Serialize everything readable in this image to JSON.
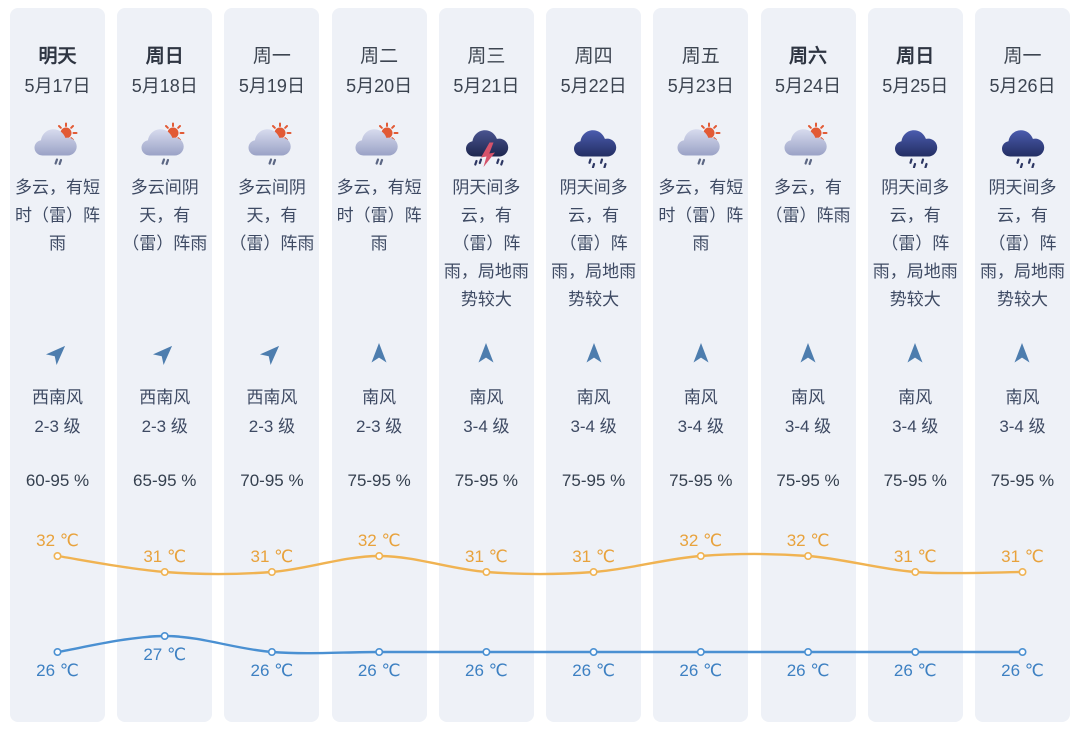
{
  "colors": {
    "column_bg": "#eef1f7",
    "day_text": "#3d4551",
    "day_bold_text": "#2e3542",
    "date_text": "#3b4350",
    "body_text": "#3e4a63",
    "humidity_text": "#35404f",
    "wind_arrow": "#4d7dae",
    "high_line": "#f0b352",
    "high_label": "#e8a23c",
    "low_line": "#4a90d2",
    "low_label": "#3d80c2"
  },
  "days": [
    {
      "day": "明天",
      "date": "5月17日",
      "bold": true,
      "icon": "cloud-sun-rain",
      "desc": "多云，有短时（雷）阵雨",
      "wind_icon": "arrow-ne",
      "wind_dir": "西南风",
      "wind_level": "2-3 级",
      "humidity": "60-95 %"
    },
    {
      "day": "周日",
      "date": "5月18日",
      "bold": true,
      "icon": "cloud-sun-rain",
      "desc": "多云间阴天，有（雷）阵雨",
      "wind_icon": "arrow-ne",
      "wind_dir": "西南风",
      "wind_level": "2-3 级",
      "humidity": "65-95 %"
    },
    {
      "day": "周一",
      "date": "5月19日",
      "bold": false,
      "icon": "cloud-sun-rain",
      "desc": "多云间阴天，有（雷）阵雨",
      "wind_icon": "arrow-ne",
      "wind_dir": "西南风",
      "wind_level": "2-3 级",
      "humidity": "70-95 %"
    },
    {
      "day": "周二",
      "date": "5月20日",
      "bold": false,
      "icon": "cloud-sun-rain",
      "desc": "多云，有短时（雷）阵雨",
      "wind_icon": "arrow-up",
      "wind_dir": "南风",
      "wind_level": "2-3 级",
      "humidity": "75-95 %"
    },
    {
      "day": "周三",
      "date": "5月21日",
      "bold": false,
      "icon": "thunder-rain",
      "desc": "阴天间多云，有（雷）阵雨，局地雨势较大",
      "wind_icon": "arrow-up",
      "wind_dir": "南风",
      "wind_level": "3-4 级",
      "humidity": "75-95 %"
    },
    {
      "day": "周四",
      "date": "5月22日",
      "bold": false,
      "icon": "cloud-rain",
      "desc": "阴天间多云，有（雷）阵雨，局地雨势较大",
      "wind_icon": "arrow-up",
      "wind_dir": "南风",
      "wind_level": "3-4 级",
      "humidity": "75-95 %"
    },
    {
      "day": "周五",
      "date": "5月23日",
      "bold": false,
      "icon": "cloud-sun-rain",
      "desc": "多云，有短时（雷）阵雨",
      "wind_icon": "arrow-up",
      "wind_dir": "南风",
      "wind_level": "3-4 级",
      "humidity": "75-95 %"
    },
    {
      "day": "周六",
      "date": "5月24日",
      "bold": true,
      "icon": "cloud-sun-rain",
      "desc": "多云，有（雷）阵雨",
      "wind_icon": "arrow-up",
      "wind_dir": "南风",
      "wind_level": "3-4 级",
      "humidity": "75-95 %"
    },
    {
      "day": "周日",
      "date": "5月25日",
      "bold": true,
      "icon": "cloud-rain",
      "desc": "阴天间多云，有（雷）阵雨，局地雨势较大",
      "wind_icon": "arrow-up",
      "wind_dir": "南风",
      "wind_level": "3-4 级",
      "humidity": "75-95 %"
    },
    {
      "day": "周一",
      "date": "5月26日",
      "bold": false,
      "icon": "cloud-rain",
      "desc": "阴天间多云，有（雷）阵雨，局地雨势较大",
      "wind_icon": "arrow-up",
      "wind_dir": "南风",
      "wind_level": "3-4 级",
      "humidity": "75-95 %"
    }
  ],
  "chart_data": {
    "type": "line",
    "unit": "℃",
    "categories": [
      "5月17日",
      "5月18日",
      "5月19日",
      "5月20日",
      "5月21日",
      "5月22日",
      "5月23日",
      "5月24日",
      "5月25日",
      "5月26日"
    ],
    "series": [
      {
        "name": "high_temp",
        "color": "#f0b352",
        "label_color": "#e8a23c",
        "values": [
          32,
          31,
          31,
          32,
          31,
          31,
          32,
          32,
          31,
          31
        ]
      },
      {
        "name": "low_temp",
        "color": "#4a90d2",
        "label_color": "#3d80c2",
        "values": [
          26,
          27,
          26,
          26,
          26,
          26,
          26,
          26,
          26,
          26
        ]
      }
    ],
    "grid": false,
    "legend": false,
    "data_labels": true
  }
}
